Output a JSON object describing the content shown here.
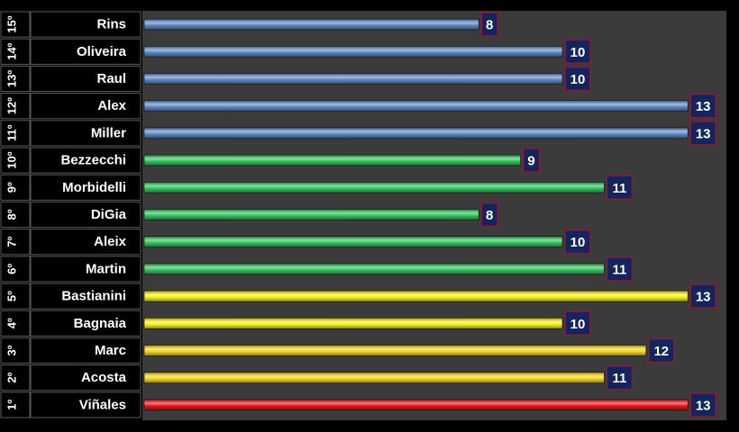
{
  "chart_data": {
    "type": "bar",
    "orientation": "horizontal",
    "xlim": [
      0,
      14
    ],
    "grid": false,
    "legend": "none",
    "colors": {
      "blue": "#5b86c4",
      "green": "#2fc25a",
      "yellow": "#f6f019",
      "gold": "#f2d51c",
      "red": "#e8141a",
      "label_box": "#14245c",
      "label_border": "#8a1a3a",
      "plot_bg": "#3b3b3b",
      "row_bg": "#000000"
    },
    "rows": [
      {
        "rank": "15º",
        "name": "Rins",
        "value": 8,
        "color": "blue"
      },
      {
        "rank": "14º",
        "name": "Oliveira",
        "value": 10,
        "color": "blue"
      },
      {
        "rank": "13º",
        "name": "Raul",
        "value": 10,
        "color": "blue"
      },
      {
        "rank": "12º",
        "name": "Alex",
        "value": 13,
        "color": "blue"
      },
      {
        "rank": "11º",
        "name": "Miller",
        "value": 13,
        "color": "blue"
      },
      {
        "rank": "10º",
        "name": "Bezzecchi",
        "value": 9,
        "color": "green"
      },
      {
        "rank": "9º",
        "name": "Morbidelli",
        "value": 11,
        "color": "green"
      },
      {
        "rank": "8º",
        "name": "DiGia",
        "value": 8,
        "color": "green"
      },
      {
        "rank": "7º",
        "name": "Aleix",
        "value": 10,
        "color": "green"
      },
      {
        "rank": "6º",
        "name": "Martin",
        "value": 11,
        "color": "green"
      },
      {
        "rank": "5º",
        "name": "Bastianini",
        "value": 13,
        "color": "yellow"
      },
      {
        "rank": "4º",
        "name": "Bagnaia",
        "value": 10,
        "color": "yellow"
      },
      {
        "rank": "3º",
        "name": "Marc",
        "value": 12,
        "color": "gold"
      },
      {
        "rank": "2º",
        "name": "Acosta",
        "value": 11,
        "color": "gold"
      },
      {
        "rank": "1º",
        "name": "Viñales",
        "value": 13,
        "color": "red"
      }
    ]
  }
}
